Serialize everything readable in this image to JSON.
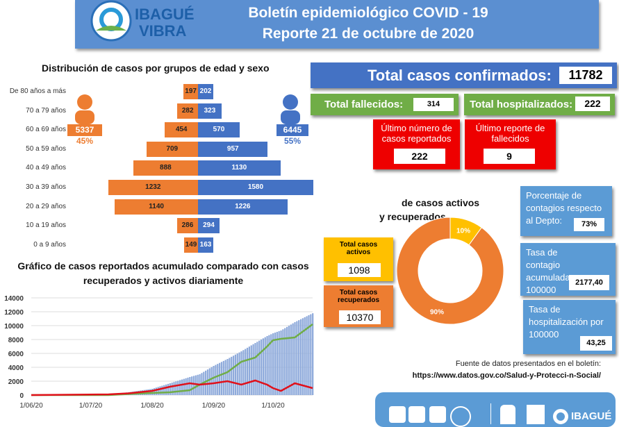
{
  "header": {
    "brand_line1": "IBAGUÉ",
    "brand_line2": "VIBRA",
    "title1": "Boletín epidemiológico COVID - 19",
    "title2": "Reporte 21 de octubre de 2020"
  },
  "pyramid": {
    "title": "Distribución de casos por grupos de edad y sexo",
    "female_total": "5337",
    "female_pct": "45%",
    "male_total": "6445",
    "male_pct": "55%",
    "rows": [
      {
        "label": "De 80 años a más",
        "f": 197,
        "m": 202
      },
      {
        "label": "70 a 79 años",
        "f": 282,
        "m": 323
      },
      {
        "label": "60 a 69 años",
        "f": 454,
        "m": 570
      },
      {
        "label": "50 a 59 años",
        "f": 709,
        "m": 957
      },
      {
        "label": "40 a 49 años",
        "f": 888,
        "m": 1130
      },
      {
        "label": "30 a 39 años",
        "f": 1232,
        "m": 1580
      },
      {
        "label": "20 a 29 años",
        "f": 1140,
        "m": 1226
      },
      {
        "label": "10 a 19 años",
        "f": 286,
        "m": 294
      },
      {
        "label": "0 a 9 años",
        "f": 149,
        "m": 163
      }
    ],
    "colors": {
      "female": "#ed7d31",
      "male": "#4472c4"
    }
  },
  "stats": {
    "total_label": "Total casos confirmados:",
    "total": "11782",
    "deaths_label": "Total fallecidos:",
    "deaths": "314",
    "hosp_label": "Total hospitalizados:",
    "hosp": "222",
    "last_cases_label": "Último número de casos reportados",
    "last_cases": "222",
    "last_deaths_label": "Último reporte de fallecidos",
    "last_deaths": "9",
    "active_label": "Total casos activos",
    "active": "1098",
    "recovered_label": "Total casos recuperados",
    "recovered": "10370",
    "contagion_pct_label": "Porcentaje de contagios respecto al Depto:",
    "contagion_pct": "73%",
    "rate_label": "Tasa de contagio acumulada por 100000",
    "rate": "2177,40",
    "hosp_rate_label": "Tasa de hospitalización por 100000",
    "hosp_rate": "43,25"
  },
  "donut": {
    "title1": "de casos activos",
    "title2": "y recuperados",
    "slices": [
      {
        "label": "10%",
        "value": 10,
        "color": "#ffc000"
      },
      {
        "label": "90%",
        "value": 90,
        "color": "#ed7d31"
      }
    ]
  },
  "source": {
    "line1": "Fuente de datos presentados en el boletín:",
    "line2": "https://www.datos.gov.co/Salud-y-Protecci-n-Social/"
  },
  "chart_data": {
    "type": "bar+line",
    "title": "Gráfico de casos reportados acumulado comparado con casos recuperados y activos diariamente",
    "ylim": [
      0,
      14000
    ],
    "yticks": [
      0,
      2000,
      4000,
      6000,
      8000,
      10000,
      12000,
      14000
    ],
    "xticks": [
      "1/06/20",
      "1/07/20",
      "1/08/20",
      "1/09/20",
      "1/10/20"
    ],
    "dates": [
      "2020-06-01",
      "2020-07-10",
      "2020-07-20",
      "2020-08-01",
      "2020-08-10",
      "2020-08-20",
      "2020-08-25",
      "2020-09-01",
      "2020-09-08",
      "2020-09-15",
      "2020-09-22",
      "2020-09-28",
      "2020-10-01",
      "2020-10-05",
      "2020-10-12",
      "2020-10-21"
    ],
    "series": [
      {
        "kind": "bar",
        "color": "#8eaadb",
        "values": [
          0,
          100,
          400,
          900,
          1700,
          2600,
          3000,
          4200,
          5200,
          6300,
          7500,
          8500,
          8900,
          9300,
          10500,
          11782
        ]
      },
      {
        "kind": "line",
        "color": "#70ad47",
        "values": [
          0,
          0,
          150,
          300,
          400,
          700,
          1500,
          2500,
          3300,
          4800,
          5400,
          7000,
          7900,
          8100,
          8300,
          10200
        ]
      },
      {
        "kind": "line",
        "color": "#e0101a",
        "values": [
          0,
          100,
          250,
          600,
          1200,
          1700,
          1500,
          1700,
          2000,
          1500,
          2100,
          1500,
          1000,
          600,
          1700,
          1000
        ]
      }
    ]
  }
}
